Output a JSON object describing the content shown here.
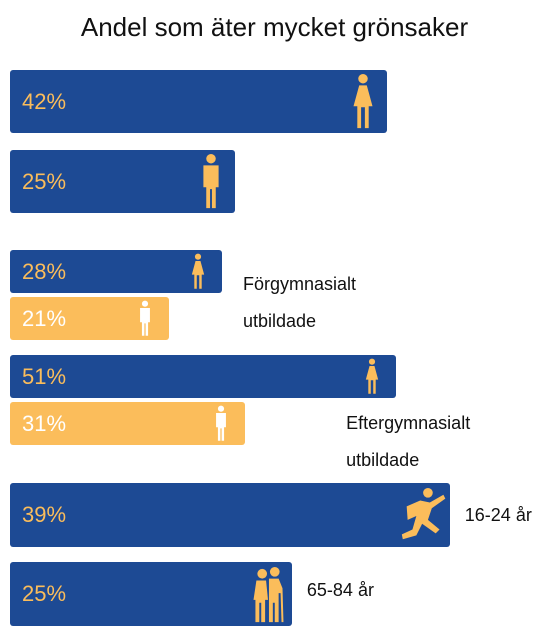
{
  "chart_data": [
    {
      "type": "bar",
      "title": "Andel som äter mycket grönsaker",
      "categories": [
        null,
        null
      ],
      "values": [
        42,
        25
      ],
      "value_labels": [
        "42%",
        "25%"
      ],
      "color": "#1d4a94",
      "label_color": "#fbbd5b",
      "xlim": [
        0,
        59
      ]
    },
    {
      "type": "bar",
      "categories": [
        "Förgymnasialt utbildade",
        "Eftergymnasialt utbildade"
      ],
      "series": [
        {
          "color": "#1d4a94",
          "label_color": "#fbbd5b",
          "values": [
            28,
            51
          ],
          "value_labels": [
            "28%",
            "51%"
          ]
        },
        {
          "color": "#fbbd5b",
          "label_color": "#ffffff",
          "values": [
            21,
            31
          ],
          "value_labels": [
            "21%",
            "31%"
          ]
        }
      ],
      "xlim": [
        0,
        70
      ]
    },
    {
      "type": "bar",
      "categories": [
        "16-24 år",
        "65-84 år"
      ],
      "values": [
        39,
        25
      ],
      "value_labels": [
        "39%",
        "25%"
      ],
      "color": "#1d4a94",
      "label_color": "#fbbd5b",
      "xlim": [
        0,
        47
      ]
    }
  ]
}
